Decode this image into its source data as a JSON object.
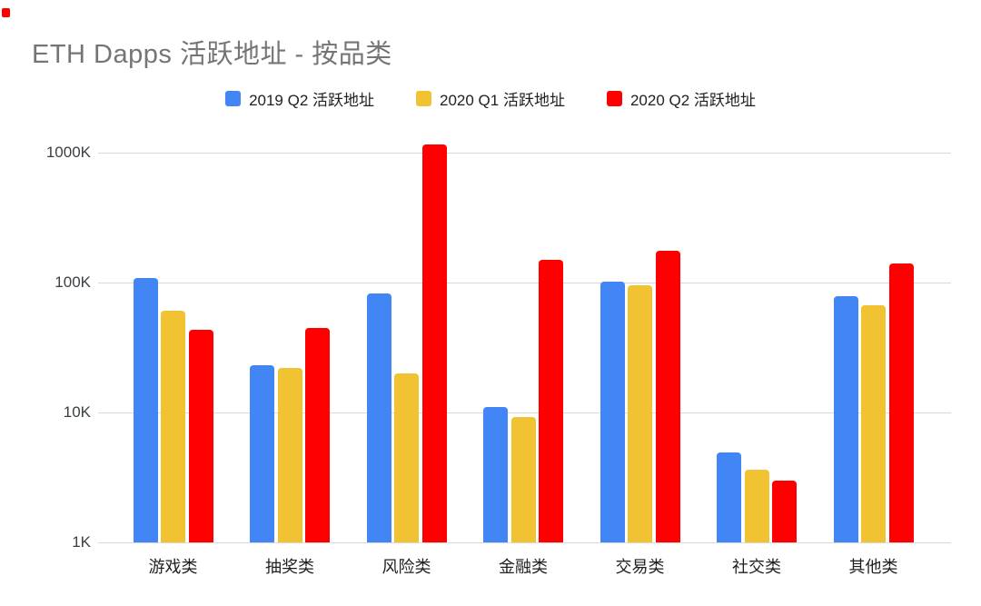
{
  "title": "ETH Dapps 活跃地址 - 按品类",
  "red_dot": {
    "color": "#fe0000"
  },
  "colors": {
    "series_blue": "#4285f4",
    "series_yellow": "#f1c232",
    "series_red": "#ff0000",
    "title_text": "#757575",
    "gridline": "#d9d9d9",
    "y_axis_text": "#3c4043",
    "x_axis_text": "#1f1f1f"
  },
  "legend": [
    {
      "label": "2019 Q2 活跃地址",
      "color": "#4285f4"
    },
    {
      "label": "2020 Q1 活跃地址",
      "color": "#f1c232"
    },
    {
      "label": "2020 Q2 活跃地址",
      "color": "#ff0000"
    }
  ],
  "chart_data": {
    "type": "bar",
    "title": "ETH Dapps 活跃地址 - 按品类",
    "scale": "log",
    "grid": true,
    "legend_position": "top",
    "categories": [
      "游戏类",
      "抽奖类",
      "风险类",
      "金融类",
      "交易类",
      "社交类",
      "其他类"
    ],
    "series": [
      {
        "name": "2019 Q2 活跃地址",
        "color": "#4285f4",
        "values": [
          108000,
          23000,
          82000,
          11000,
          101000,
          4900,
          79000
        ]
      },
      {
        "name": "2020 Q1 活跃地址",
        "color": "#f1c232",
        "values": [
          61000,
          22000,
          20000,
          9300,
          96000,
          3600,
          67000
        ]
      },
      {
        "name": "2020 Q2 活跃地址",
        "color": "#ff0000",
        "values": [
          43000,
          45000,
          1160000,
          150000,
          176000,
          3000,
          141000
        ]
      }
    ],
    "y_ticks": [
      {
        "label": "1K",
        "value": 1000
      },
      {
        "label": "10K",
        "value": 10000
      },
      {
        "label": "100K",
        "value": 100000
      },
      {
        "label": "1000K",
        "value": 1000000
      }
    ],
    "ylim": [
      1000,
      1400000
    ],
    "xlabel": "",
    "ylabel": ""
  }
}
